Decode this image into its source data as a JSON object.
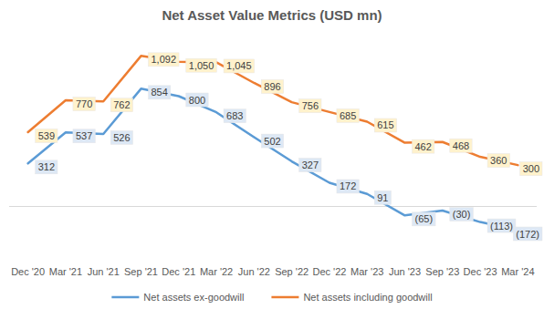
{
  "chart_data": {
    "type": "line",
    "title": "Net Asset Value Metrics (USD mn)",
    "categories": [
      "Dec '20",
      "Mar '21",
      "Jun '21",
      "Sep '21",
      "Dec '21",
      "Mar '22",
      "Jun '22",
      "Sep '22",
      "Dec '22",
      "Mar '23",
      "Jun '23",
      "Sep '23",
      "Dec '23",
      "Mar '24"
    ],
    "series": [
      {
        "name": "Net assets ex-goodwill",
        "color": "#5b9bd5",
        "values": [
          312,
          537,
          526,
          854,
          800,
          683,
          502,
          327,
          172,
          91,
          -65,
          -30,
          -113,
          -172
        ],
        "value_labels": [
          "312",
          "537",
          "526",
          "854",
          "800",
          "683",
          "502",
          "327",
          "172",
          "91",
          "(65)",
          "(30)",
          "(113)",
          "(172)"
        ]
      },
      {
        "name": "Net assets including goodwill",
        "color": "#ed7d31",
        "values": [
          539,
          770,
          762,
          1092,
          1050,
          1045,
          896,
          756,
          685,
          615,
          462,
          468,
          360,
          300
        ],
        "value_labels": [
          "539",
          "770",
          "762",
          "1,092",
          "1,050",
          "1,045",
          "896",
          "756",
          "685",
          "615",
          "462",
          "468",
          "360",
          "300"
        ]
      }
    ],
    "ylim": [
      -400,
      1200
    ],
    "data_labels": true,
    "tick_labels": "x",
    "grid": false,
    "legend": "bottom"
  }
}
